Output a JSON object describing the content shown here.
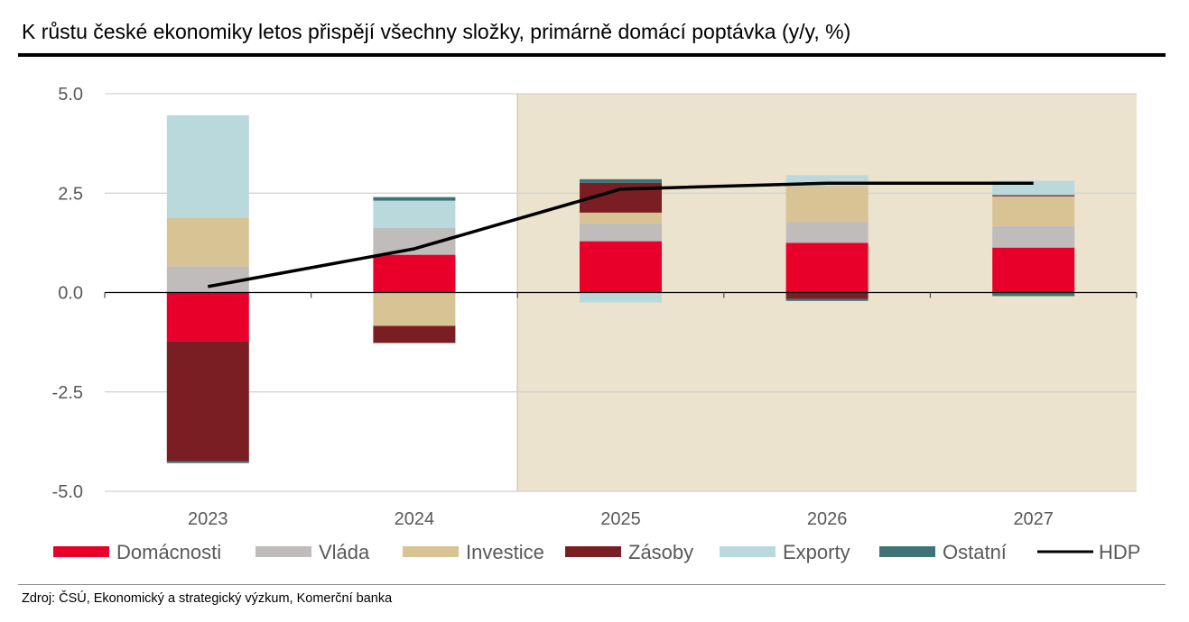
{
  "title": "K růstu české ekonomiky letos přispějí všechny složky, primárně domácí poptávka (y/y, %)",
  "source": "Zdroj: ČSÚ, Ekonomický a strategický výzkum, Komerční banka",
  "chart_data": {
    "type": "bar",
    "stacked": true,
    "title": "K růstu české ekonomiky letos přispějí všechny složky, primárně domácí poptávka (y/y, %)",
    "xlabel": "",
    "ylabel": "",
    "ylim": [
      -5.0,
      5.0
    ],
    "yticks": [
      5.0,
      2.5,
      0.0,
      -2.5,
      -5.0
    ],
    "ytick_labels": [
      "5.0",
      "2.5",
      "0.0",
      "-2.5",
      "-5.0"
    ],
    "grid": true,
    "categories": [
      "2023",
      "2024",
      "2025",
      "2026",
      "2027"
    ],
    "forecast_shaded_from": "2025",
    "forecast_shade_color": "#ebe3cd",
    "series": [
      {
        "name": "Domácnosti",
        "color": "#e8002a",
        "values": [
          -1.22,
          0.95,
          1.29,
          1.25,
          1.13
        ]
      },
      {
        "name": "Vláda",
        "color": "#bfbcbb",
        "values": [
          0.66,
          0.68,
          0.45,
          0.52,
          0.54
        ]
      },
      {
        "name": "Investice",
        "color": "#d7c394",
        "values": [
          1.22,
          -0.84,
          0.27,
          0.91,
          0.75
        ]
      },
      {
        "name": "Zásoby",
        "color": "#7b1e24",
        "values": [
          -3.02,
          -0.43,
          0.75,
          -0.16,
          0.03
        ]
      },
      {
        "name": "Exporty",
        "color": "#b9d9dc",
        "values": [
          2.58,
          0.68,
          -0.25,
          0.27,
          0.36
        ]
      },
      {
        "name": "Ostatní",
        "color": "#3e7378",
        "values": [
          -0.05,
          0.09,
          0.09,
          -0.05,
          -0.09
        ]
      }
    ],
    "line": {
      "name": "HDP",
      "color": "#000000",
      "values": [
        0.15,
        1.1,
        2.6,
        2.75,
        2.75
      ]
    },
    "legend": {
      "placement": "bottom",
      "entries": [
        "Domácnosti",
        "Vláda",
        "Investice",
        "Zásoby",
        "Exporty",
        "Ostatní",
        "HDP"
      ]
    }
  }
}
